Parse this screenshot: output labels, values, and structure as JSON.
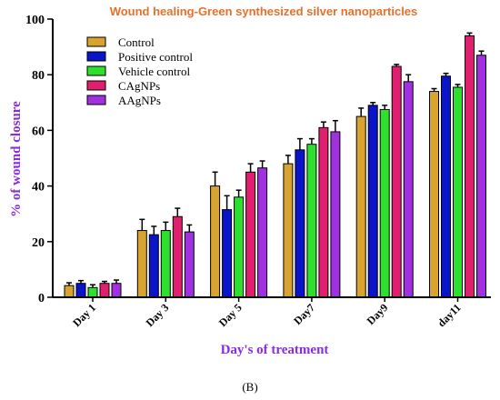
{
  "chart_data": {
    "type": "bar",
    "title": "Wound healing-Green synthesized silver nanoparticles",
    "xlabel": "Day's of treatment",
    "ylabel": "% of wound closure",
    "ylim": [
      0,
      100
    ],
    "yticks": [
      0,
      20,
      40,
      60,
      80,
      100
    ],
    "categories": [
      "Day 1",
      "Day 3",
      "Day 5",
      "Day7",
      "Day9",
      "day11"
    ],
    "legend_position": "top-left",
    "series": [
      {
        "name": "Control",
        "color": "#d9a32f",
        "values": [
          4.2,
          24,
          40,
          48,
          65,
          74
        ],
        "errors": [
          1.0,
          4.0,
          5.0,
          3.0,
          3.0,
          1.0
        ]
      },
      {
        "name": "Positive control",
        "color": "#0a14c8",
        "values": [
          5,
          22.5,
          31.5,
          53,
          69,
          79.5
        ],
        "errors": [
          1.0,
          3.0,
          5.0,
          4.0,
          1.0,
          1.0
        ]
      },
      {
        "name": "Vehicle control",
        "color": "#2ee02e",
        "values": [
          3.5,
          24,
          36,
          55,
          67.5,
          75.5
        ],
        "errors": [
          1.0,
          3.0,
          2.5,
          2.0,
          1.5,
          1.0
        ]
      },
      {
        "name": "CAgNPs",
        "color": "#e0206e",
        "values": [
          5,
          29,
          45,
          61,
          83,
          94
        ],
        "errors": [
          0.7,
          3.0,
          3.0,
          2.0,
          0.7,
          1.0
        ]
      },
      {
        "name": "AAgNPs",
        "color": "#a030e0",
        "values": [
          5,
          23.5,
          46.5,
          59.5,
          77.5,
          87
        ],
        "errors": [
          1.2,
          2.5,
          2.5,
          4.0,
          2.5,
          1.5
        ]
      }
    ]
  },
  "caption": "(B)"
}
